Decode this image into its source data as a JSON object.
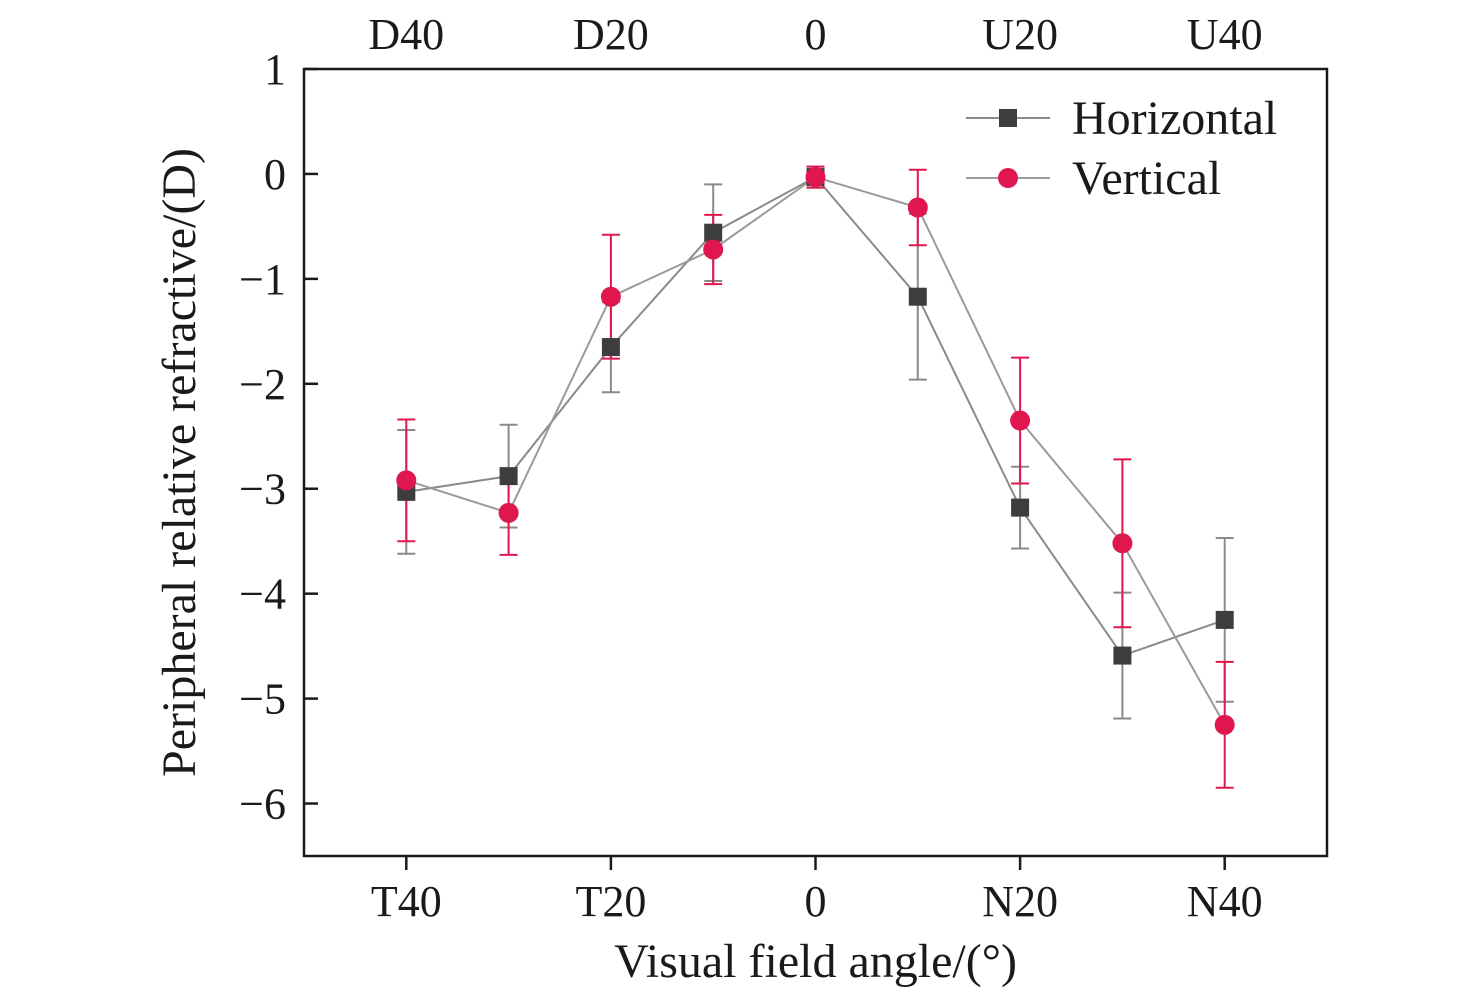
{
  "chart_data": {
    "type": "line",
    "xlabel": "Visual field angle/(°)",
    "ylabel": "Peripheral relative refractive/(D)",
    "x": [
      -40,
      -30,
      -20,
      -10,
      0,
      10,
      20,
      30,
      40
    ],
    "xlim": [
      -50,
      50
    ],
    "ylim": [
      -6.5,
      1
    ],
    "x_ticks": [
      {
        "value": -40,
        "label": "T40"
      },
      {
        "value": -20,
        "label": "T20"
      },
      {
        "value": 0,
        "label": "0"
      },
      {
        "value": 20,
        "label": "N20"
      },
      {
        "value": 40,
        "label": "N40"
      }
    ],
    "x_ticks_top": [
      {
        "value": -40,
        "label": "D40"
      },
      {
        "value": -20,
        "label": "D20"
      },
      {
        "value": 0,
        "label": "0"
      },
      {
        "value": 20,
        "label": "U20"
      },
      {
        "value": 40,
        "label": "U40"
      }
    ],
    "y_ticks": [
      {
        "value": 1,
        "label": "1"
      },
      {
        "value": 0,
        "label": "0"
      },
      {
        "value": -1,
        "label": "−1"
      },
      {
        "value": -2,
        "label": "−2"
      },
      {
        "value": -3,
        "label": "−3"
      },
      {
        "value": -4,
        "label": "−4"
      },
      {
        "value": -5,
        "label": "−5"
      },
      {
        "value": -6,
        "label": "−6"
      }
    ],
    "grid": false,
    "legend_position": "top-right",
    "series": [
      {
        "name": "Horizontal",
        "marker": "square",
        "color": "#3d3d3d",
        "line_color": "#8a8a8a",
        "error_color": "#8a8a8a",
        "values": [
          -3.03,
          -2.88,
          -1.65,
          -0.56,
          -0.03,
          -1.17,
          -3.18,
          -4.59,
          -4.25
        ],
        "errors": [
          0.59,
          0.49,
          0.43,
          0.46,
          0.1,
          0.79,
          0.39,
          0.6,
          0.78
        ]
      },
      {
        "name": "Vertical",
        "marker": "circle",
        "color": "#e0174f",
        "line_color": "#9a9a9a",
        "error_color": "#e0174f",
        "values": [
          -2.92,
          -3.23,
          -1.17,
          -0.72,
          -0.03,
          -0.32,
          -2.35,
          -3.52,
          -5.25
        ],
        "errors": [
          0.58,
          0.4,
          0.59,
          0.33,
          0.1,
          0.36,
          0.6,
          0.8,
          0.6
        ]
      }
    ]
  }
}
